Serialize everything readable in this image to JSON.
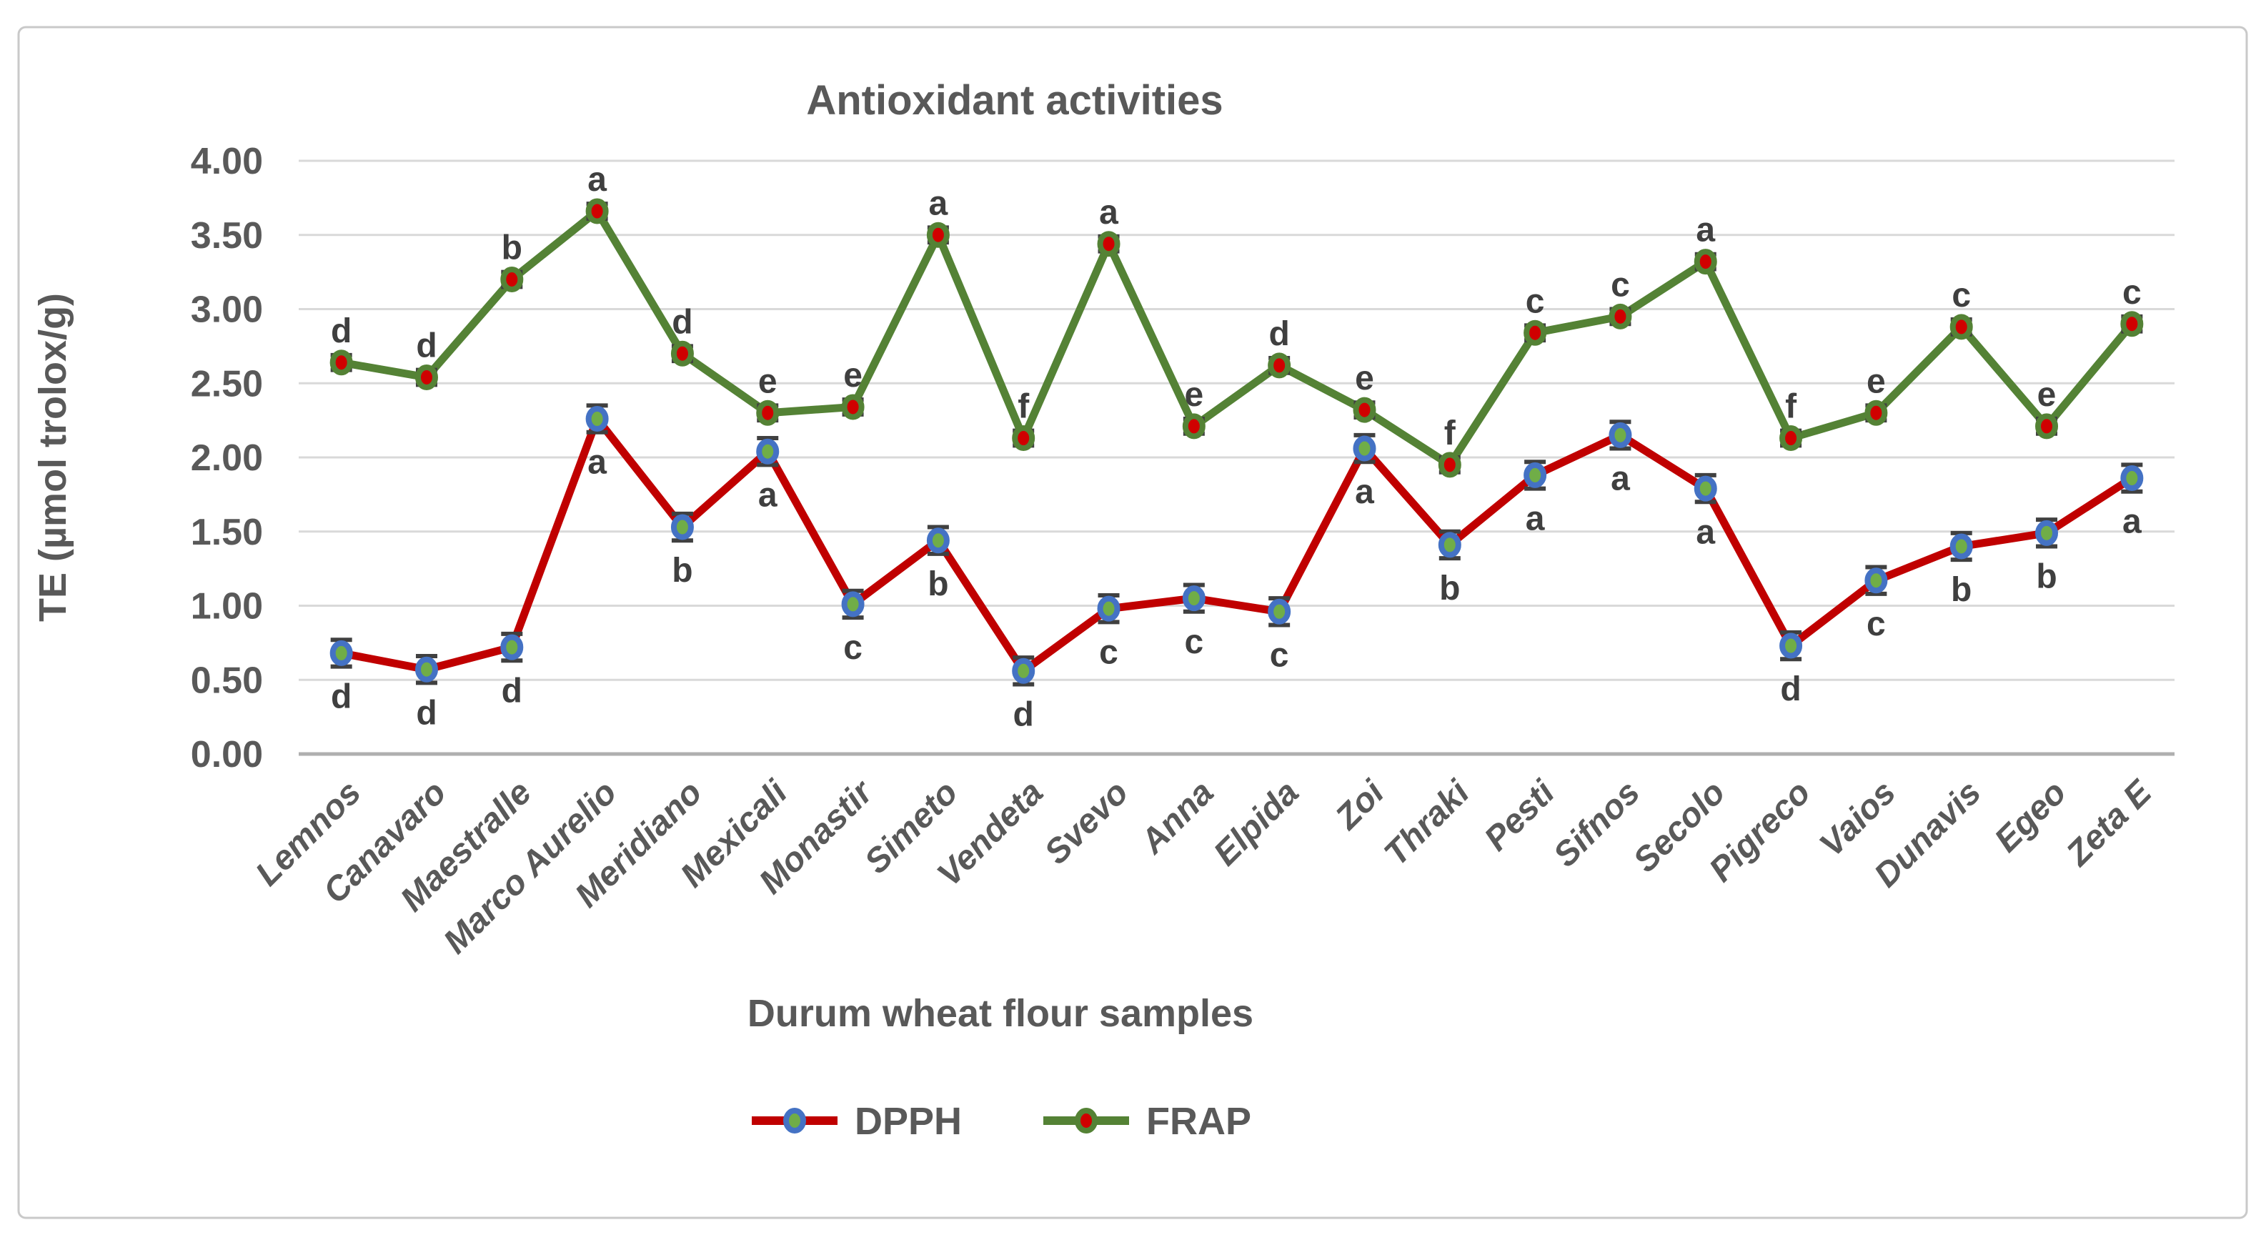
{
  "figure": {
    "title": "Antioxidant activities",
    "xlabel": "Durum wheat flour samples",
    "ylabel": "TE (µmol trolox/g)"
  },
  "chart_data": {
    "type": "line",
    "title": "Antioxidant activities",
    "xlabel": "Durum wheat flour samples",
    "ylabel": "TE (µmol trolox/g)",
    "categories": [
      "Lemnos",
      "Canavaro",
      "Maestralle",
      "Marco Aurelio",
      "Meridiano",
      "Mexicali",
      "Monastir",
      "Simeto",
      "Vendeta",
      "Svevo",
      "Anna",
      "Elpida",
      "Zoi",
      "Thraki",
      "Pesti",
      "Sifnos",
      "Secolo",
      "Pigreco",
      "Vaios",
      "Dunavis",
      "Egeo",
      "Zeta E"
    ],
    "series": [
      {
        "name": "DPPH",
        "line_color": "#C00000",
        "marker_ring_color": "#4472C4",
        "marker_fill_color": "#70AD47",
        "error_bar_value": 0.09,
        "values": [
          0.68,
          0.57,
          0.72,
          2.26,
          1.53,
          2.04,
          1.01,
          1.44,
          0.56,
          0.98,
          1.05,
          0.96,
          2.06,
          1.41,
          1.88,
          2.15,
          1.79,
          0.73,
          1.17,
          1.4,
          1.49,
          1.86
        ],
        "letters": [
          "d",
          "d",
          "d",
          "a",
          "b",
          "a",
          "c",
          "b",
          "d",
          "c",
          "c",
          "c",
          "a",
          "b",
          "a",
          "a",
          "a",
          "d",
          "c",
          "b",
          "b",
          "a"
        ],
        "letter_position": "below"
      },
      {
        "name": "FRAP",
        "line_color": "#548235",
        "marker_ring_color": "#548235",
        "marker_fill_color": "#D00000",
        "error_bar_value": 0.05,
        "values": [
          2.64,
          2.54,
          3.2,
          3.66,
          2.7,
          2.3,
          2.34,
          3.5,
          2.13,
          3.44,
          2.21,
          2.62,
          2.32,
          1.95,
          2.84,
          2.95,
          3.32,
          2.13,
          2.3,
          2.88,
          2.21,
          2.9
        ],
        "letters": [
          "d",
          "d",
          "b",
          "a",
          "d",
          "e",
          "e",
          "a",
          "f",
          "a",
          "e",
          "d",
          "e",
          "f",
          "c",
          "c",
          "a",
          "f",
          "e",
          "c",
          "e",
          "c"
        ],
        "letter_position": "above"
      }
    ],
    "ylim": [
      0,
      4
    ],
    "ytick_step": 0.5,
    "ytick_decimals": 2,
    "grid": true,
    "legend_position": "bottom",
    "colors": {
      "grid": "#D9D9D9",
      "axis_line": "#BFBFBF",
      "tick_text": "#595959",
      "sig_letter": "#3F3F3F",
      "error_bar": "#404040",
      "frame_border": "#C9C9C9",
      "background": "#FFFFFF"
    }
  }
}
